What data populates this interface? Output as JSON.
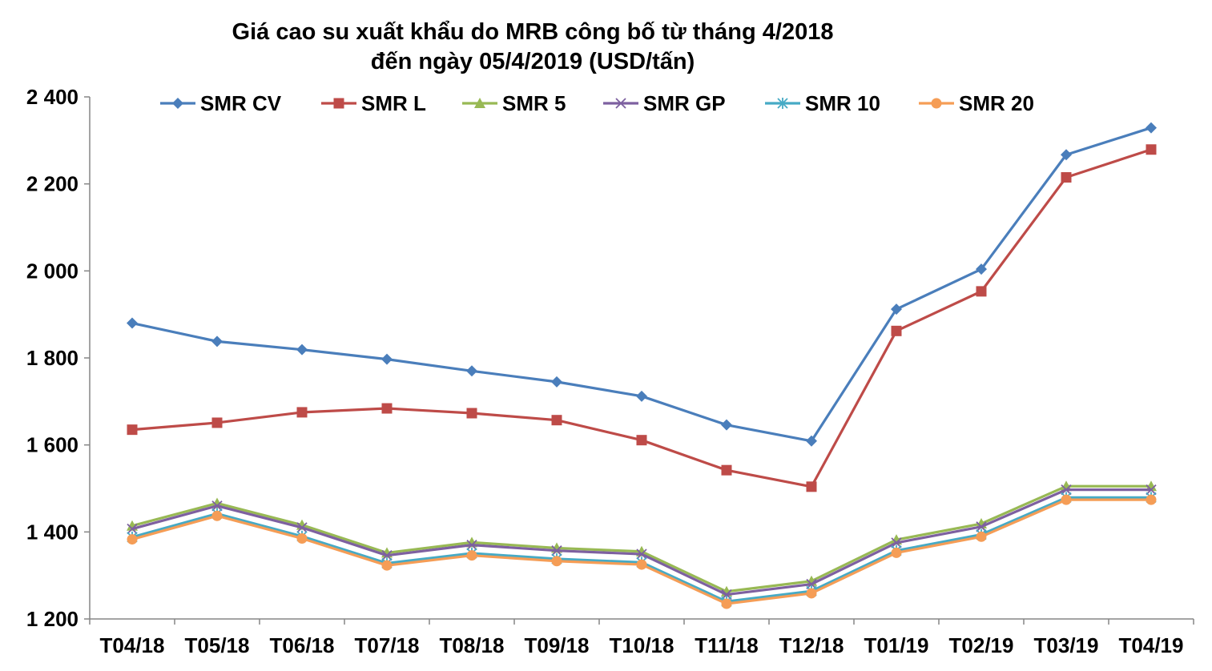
{
  "chart_data": {
    "type": "line",
    "title_line1": "Giá cao su xuất khẩu do MRB công bố từ tháng 4/2018",
    "title_line2": "đến ngày 05/4/2019 (USD/tấn)",
    "xlabel": "",
    "ylabel": "",
    "ylim": [
      1200,
      2400
    ],
    "y_ticks": [
      1200,
      1400,
      1600,
      1800,
      2000,
      2200,
      2400
    ],
    "y_tick_labels": [
      "1 200",
      "1 400",
      "1 600",
      "1 800",
      "2 000",
      "2 200",
      "2 400"
    ],
    "grid": false,
    "legend_position": "top",
    "categories": [
      "T04/18",
      "T05/18",
      "T06/18",
      "T07/18",
      "T08/18",
      "T09/18",
      "T10/18",
      "T11/18",
      "T12/18",
      "T01/19",
      "T02/19",
      "T03/19",
      "T04/19"
    ],
    "series": [
      {
        "name": "SMR CV",
        "color": "#4a7ebb",
        "marker": "diamond",
        "values": [
          1880,
          1838,
          1819,
          1797,
          1770,
          1745,
          1712,
          1646,
          1609,
          1912,
          2004,
          2267,
          2329
        ]
      },
      {
        "name": "SMR L",
        "color": "#be4b48",
        "marker": "square",
        "values": [
          1635,
          1651,
          1675,
          1684,
          1673,
          1657,
          1611,
          1542,
          1504,
          1862,
          1953,
          2215,
          2279
        ]
      },
      {
        "name": "SMR 5",
        "color": "#98b954",
        "marker": "triangle",
        "values": [
          1414,
          1466,
          1416,
          1352,
          1376,
          1363,
          1355,
          1263,
          1287,
          1382,
          1419,
          1505,
          1505
        ]
      },
      {
        "name": "SMR GP",
        "color": "#7d60a0",
        "marker": "x",
        "values": [
          1407,
          1460,
          1410,
          1346,
          1370,
          1357,
          1349,
          1256,
          1280,
          1375,
          1412,
          1497,
          1497
        ]
      },
      {
        "name": "SMR 10",
        "color": "#46aac5",
        "marker": "star",
        "values": [
          1388,
          1442,
          1390,
          1328,
          1351,
          1338,
          1330,
          1240,
          1264,
          1357,
          1394,
          1479,
          1479
        ]
      },
      {
        "name": "SMR 20",
        "color": "#f59d56",
        "marker": "circle",
        "values": [
          1383,
          1437,
          1385,
          1323,
          1346,
          1333,
          1325,
          1235,
          1259,
          1352,
          1389,
          1474,
          1474
        ]
      }
    ]
  }
}
